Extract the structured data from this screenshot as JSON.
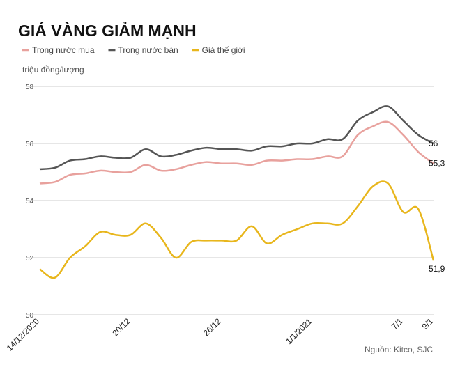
{
  "chart_data": {
    "type": "line",
    "title": "GIÁ VÀNG GIẢM MẠNH",
    "y_label": "triệu đồng/lượng",
    "source": "Nguồn: Kitco, SJC",
    "categories": [
      "14/12/2020",
      null,
      null,
      null,
      null,
      null,
      "20/12",
      null,
      null,
      null,
      null,
      null,
      "26/12",
      null,
      null,
      null,
      null,
      null,
      "1/1/2021",
      null,
      null,
      null,
      null,
      null,
      "7/1",
      null,
      "9/1"
    ],
    "series": [
      {
        "name": "Trong nước mua",
        "color": "#e8a19d",
        "values": [
          54.6,
          54.65,
          54.9,
          54.95,
          55.05,
          55.0,
          55.0,
          55.25,
          55.05,
          55.1,
          55.25,
          55.35,
          55.3,
          55.3,
          55.25,
          55.4,
          55.4,
          55.45,
          55.45,
          55.55,
          55.55,
          56.3,
          56.6,
          56.75,
          56.3,
          55.7,
          55.3
        ],
        "value_labels": [
          null,
          null,
          null,
          null,
          null,
          null,
          null,
          null,
          null,
          null,
          null,
          null,
          null,
          null,
          null,
          null,
          null,
          null,
          null,
          null,
          null,
          null,
          null,
          null,
          null,
          null,
          "55,3"
        ]
      },
      {
        "name": "Trong nước bán",
        "color": "#555555",
        "values": [
          55.1,
          55.15,
          55.4,
          55.45,
          55.55,
          55.5,
          55.5,
          55.8,
          55.55,
          55.6,
          55.75,
          55.85,
          55.8,
          55.8,
          55.75,
          55.9,
          55.9,
          56.0,
          56.0,
          56.15,
          56.15,
          56.8,
          57.1,
          57.3,
          56.8,
          56.3,
          56
        ],
        "value_labels": [
          null,
          null,
          null,
          null,
          null,
          null,
          null,
          null,
          null,
          null,
          null,
          null,
          null,
          null,
          null,
          null,
          null,
          null,
          null,
          null,
          null,
          null,
          null,
          null,
          null,
          null,
          "56"
        ]
      },
      {
        "name": "Giá thế giới",
        "color": "#e8b61c",
        "values": [
          51.6,
          51.3,
          52.0,
          52.4,
          52.9,
          52.8,
          52.8,
          53.2,
          52.7,
          52.0,
          52.55,
          52.6,
          52.6,
          52.6,
          53.1,
          52.5,
          52.8,
          53.0,
          53.2,
          53.2,
          53.2,
          53.8,
          54.5,
          54.6,
          53.6,
          53.7,
          51.9
        ],
        "value_labels": [
          null,
          null,
          null,
          null,
          null,
          null,
          null,
          null,
          null,
          null,
          null,
          null,
          null,
          null,
          null,
          null,
          null,
          null,
          null,
          null,
          null,
          null,
          null,
          null,
          null,
          null,
          "51,9"
        ]
      }
    ],
    "ylim": [
      50,
      58
    ],
    "yticks": [
      50,
      52,
      54,
      56,
      58
    ],
    "grid": true
  }
}
